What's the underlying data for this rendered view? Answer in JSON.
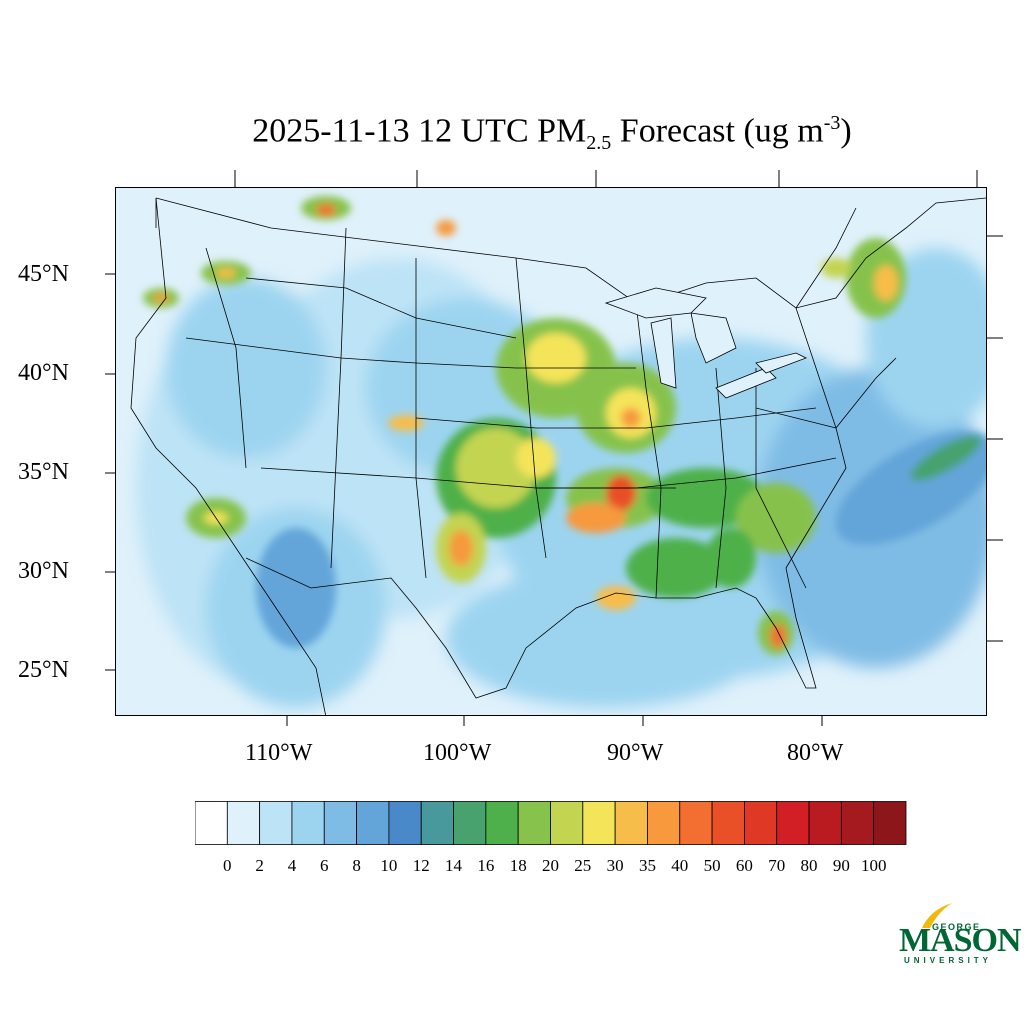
{
  "title": {
    "prefix": "2025-11-13 12 UTC PM",
    "subscript": "2.5",
    "middle": " Forecast (ug m",
    "superscript": "-3",
    "suffix": ")"
  },
  "axes": {
    "lat_labels": [
      "45°N",
      "40°N",
      "35°N",
      "30°N",
      "25°N"
    ],
    "lon_labels": [
      "110°W",
      "100°W",
      "90°W",
      "80°W"
    ]
  },
  "colorbar": {
    "levels": [
      "0",
      "2",
      "4",
      "6",
      "8",
      "10",
      "12",
      "14",
      "16",
      "18",
      "20",
      "25",
      "30",
      "35",
      "40",
      "50",
      "60",
      "70",
      "80",
      "90",
      "100"
    ],
    "colors": [
      "#ffffff",
      "#dff1fb",
      "#bde3f6",
      "#9cd4f0",
      "#7fbce5",
      "#64a5d9",
      "#4a89c9",
      "#48999c",
      "#47a26e",
      "#4db04a",
      "#86c24c",
      "#c3d451",
      "#f4e45a",
      "#f7bd4a",
      "#f7993c",
      "#f26e31",
      "#e95028",
      "#df3825",
      "#d11f25",
      "#b91b21",
      "#a41a1f",
      "#8c161a"
    ]
  },
  "logo": {
    "george": "GEORGE",
    "mason": "MASON",
    "university": "UNIVERSITY"
  }
}
